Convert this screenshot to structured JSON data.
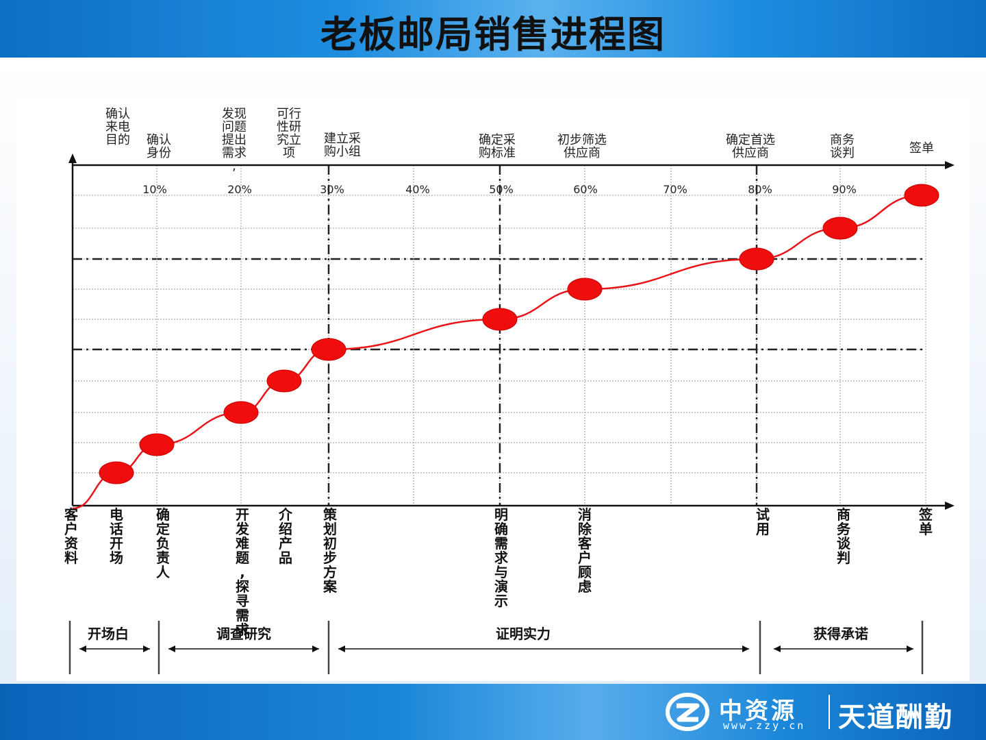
{
  "slide": {
    "title": "老板邮局销售进程图"
  },
  "diagram": {
    "percent_labels": [
      "10%",
      "20%",
      "30%",
      "40%",
      "50%",
      "60%",
      "70%",
      "80%",
      "90%"
    ],
    "top_labels": [
      {
        "text": "确认来电目的"
      },
      {
        "text": "确 认 身份"
      },
      {
        "text": "发现问题 提出需求,"
      },
      {
        "text": "可行性 研究立项"
      },
      {
        "text": "建立采 购小组"
      },
      {
        "text": "确定采 购标准"
      },
      {
        "text": "初步筛选 供应商"
      },
      {
        "text": "确定首选 供应商"
      },
      {
        "text": "商 务 谈判"
      },
      {
        "text": "签单"
      }
    ],
    "bottom_labels": [
      {
        "text": "客户资料"
      },
      {
        "text": "电话开场"
      },
      {
        "text": "确定负责人"
      },
      {
        "text": "开发难题,探寻需求"
      },
      {
        "text": "介绍产品"
      },
      {
        "text": "策划初步方案"
      },
      {
        "text": "明确需求与演示"
      },
      {
        "text": "消除客户顾虑"
      },
      {
        "text": "试用"
      },
      {
        "text": "商务谈判"
      },
      {
        "text": "签单"
      }
    ],
    "phases": [
      {
        "label": "开场白"
      },
      {
        "label": "调查研究"
      },
      {
        "label": "证明实力"
      },
      {
        "label": "获得承诺"
      }
    ],
    "colors": {
      "curve": "#e8141a",
      "marker": "#f00d0d",
      "axis": "#111111"
    }
  },
  "footer": {
    "brand_name": "中资源",
    "brand_url": "www.zzy.cn",
    "slogan": "天道酬勤",
    "logo_icon": "zzy-logo-icon"
  }
}
